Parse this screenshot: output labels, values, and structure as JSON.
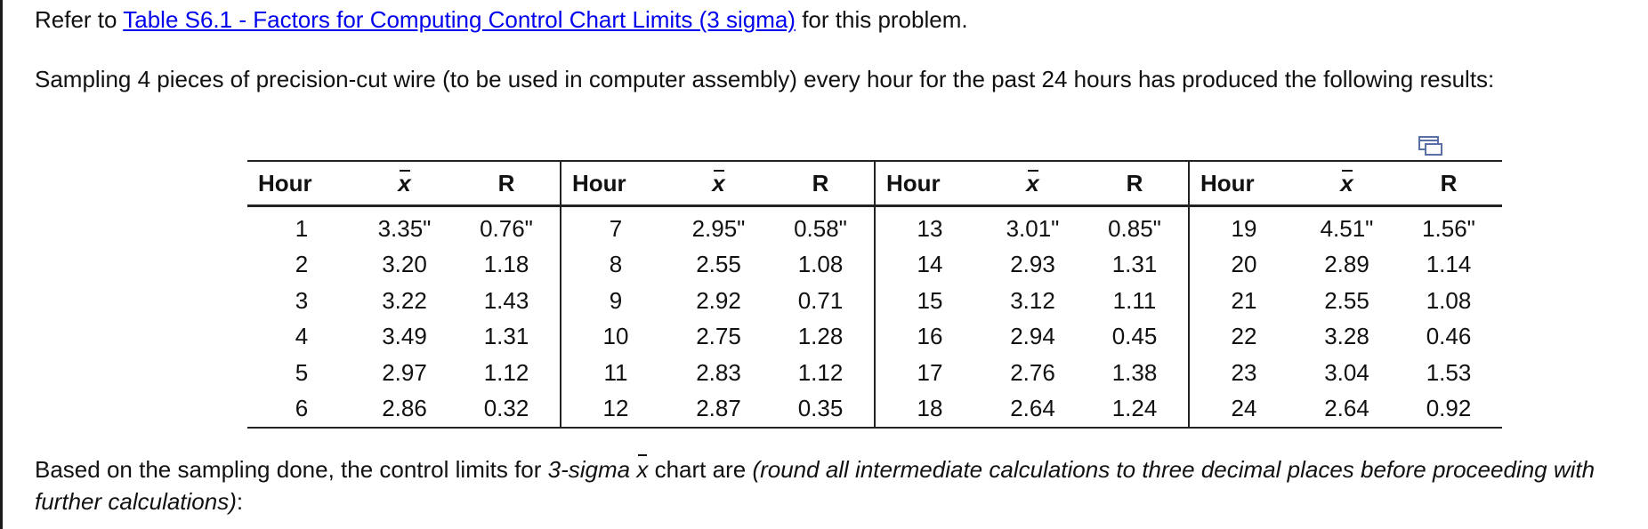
{
  "intro": {
    "prefix": "Refer to ",
    "link_text": "Table S6.1 - Factors for Computing Control Chart Limits (3 sigma)",
    "suffix": " for this problem."
  },
  "problem": {
    "text": "Sampling 4 pieces of precision-cut wire (to be used in computer assembly) every hour for the past 24 hours has produced the following results:"
  },
  "table": {
    "headers": [
      "Hour",
      "x",
      "R",
      "Hour",
      "x",
      "R",
      "Hour",
      "x",
      "R",
      "Hour",
      "x",
      "R"
    ],
    "rows": [
      [
        "1",
        "3.35\"",
        "0.76\"",
        "7",
        "2.95\"",
        "0.58\"",
        "13",
        "3.01\"",
        "0.85\"",
        "19",
        "4.51\"",
        "1.56\""
      ],
      [
        "2",
        "3.20",
        "1.18",
        "8",
        "2.55",
        "1.08",
        "14",
        "2.93",
        "1.31",
        "20",
        "2.89",
        "1.14"
      ],
      [
        "3",
        "3.22",
        "1.43",
        "9",
        "2.92",
        "0.71",
        "15",
        "3.12",
        "1.11",
        "21",
        "2.55",
        "1.08"
      ],
      [
        "4",
        "3.49",
        "1.31",
        "10",
        "2.75",
        "1.28",
        "16",
        "2.94",
        "0.45",
        "22",
        "3.28",
        "0.46"
      ],
      [
        "5",
        "2.97",
        "1.12",
        "11",
        "2.83",
        "1.12",
        "17",
        "2.76",
        "1.38",
        "23",
        "3.04",
        "1.53"
      ],
      [
        "6",
        "2.86",
        "0.32",
        "12",
        "2.87",
        "0.35",
        "18",
        "2.64",
        "1.24",
        "24",
        "2.64",
        "0.92"
      ]
    ]
  },
  "question": {
    "part1": "Based on the sampling done, the control limits for ",
    "part2": "3-sigma",
    "part3": " ",
    "xbar": "x",
    "part4": " chart are ",
    "part5": "(round all intermediate calculations to three decimal places before proceeding with further calculations)",
    "part6": ":"
  },
  "icons": {
    "popout": "popout-window-icon"
  },
  "colors": {
    "link": "#0000ee",
    "text": "#111111"
  }
}
